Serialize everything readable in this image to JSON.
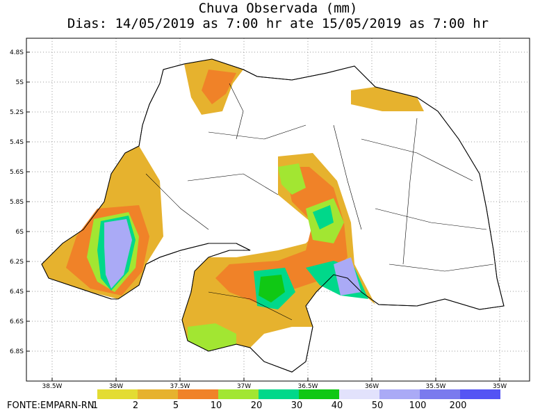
{
  "header": {
    "title": "Chuva Observada (mm)",
    "subtitle": "Dias: 14/05/2019 as 7:00 hr ate 15/05/2019 as 7:00 hr"
  },
  "map": {
    "lat_ticks": [
      "4.8S",
      "5S",
      "5.2S",
      "5.4S",
      "5.6S",
      "5.8S",
      "6S",
      "6.2S",
      "6.4S",
      "6.6S",
      "6.8S"
    ],
    "lon_ticks": [
      "38.5W",
      "38W",
      "37.5W",
      "37W",
      "36.5W",
      "36W",
      "35.5W",
      "35W"
    ]
  },
  "legend": {
    "values": [
      1,
      2,
      5,
      10,
      20,
      30,
      40,
      50,
      100,
      200
    ],
    "colors": [
      "#e3dc32",
      "#e6b22e",
      "#f08228",
      "#a2e632",
      "#00d88a",
      "#10c814",
      "#e2e2fc",
      "#aaaaf6",
      "#7a7aee",
      "#5454f4"
    ]
  },
  "source": "FONTE:EMPARN-RN"
}
